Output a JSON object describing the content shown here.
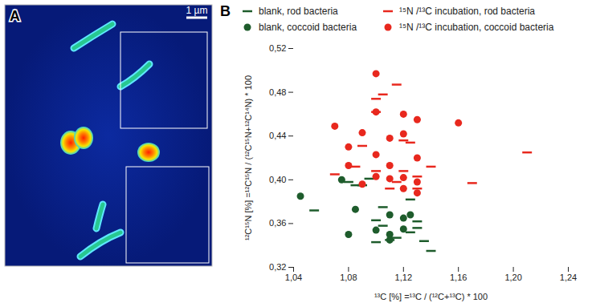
{
  "image": {
    "title": "A",
    "scale_bar_label": "1 µm"
  },
  "chart_data": {
    "type": "scatter",
    "title": "B",
    "xlabel": "¹³C [%] =¹³C / (¹²C+¹³C) * 100",
    "ylabel": "¹²C¹⁵N [%] =¹²C¹⁵N / (¹²C¹⁵N+¹²C¹⁴N) * 100",
    "xlim": [
      1.04,
      1.24
    ],
    "xticks": [
      {
        "value": 1.04,
        "label": "1,04"
      },
      {
        "value": 1.08,
        "label": "1,08"
      },
      {
        "value": 1.12,
        "label": "1,12"
      },
      {
        "value": 1.16,
        "label": "1,16"
      },
      {
        "value": 1.2,
        "label": "1,20"
      },
      {
        "value": 1.24,
        "label": "1,24"
      }
    ],
    "ylim": [
      0.32,
      0.52
    ],
    "yticks": [
      {
        "value": 0.32,
        "label": "0,32"
      },
      {
        "value": 0.36,
        "label": "0,36"
      },
      {
        "value": 0.4,
        "label": "0,40"
      },
      {
        "value": 0.44,
        "label": "0,44"
      },
      {
        "value": 0.48,
        "label": "0,48"
      },
      {
        "value": 0.52,
        "label": "0,52"
      }
    ],
    "legend": "top",
    "grid": false,
    "series": [
      {
        "name": "blank, rod bacteria",
        "color": "#1e5c2c",
        "marker": "dash",
        "x": [
          1.055,
          1.08,
          1.085,
          1.09,
          1.095,
          1.105,
          1.1,
          1.105,
          1.11,
          1.115,
          1.125,
          1.13,
          1.13,
          1.14,
          1.135,
          1.125,
          1.1
        ],
        "values": [
          0.372,
          0.398,
          0.395,
          0.395,
          0.401,
          0.375,
          0.363,
          0.358,
          0.345,
          0.347,
          0.352,
          0.356,
          0.362,
          0.335,
          0.344,
          0.382,
          0.343
        ]
      },
      {
        "name": "blank, coccoid bacteria",
        "color": "#1e5c2c",
        "marker": "circle",
        "x": [
          1.045,
          1.075,
          1.085,
          1.08,
          1.1,
          1.11,
          1.12,
          1.125,
          1.12,
          1.11,
          1.11
        ],
        "values": [
          0.385,
          0.4,
          0.373,
          0.35,
          0.354,
          0.35,
          0.355,
          0.368,
          0.365,
          0.368,
          0.345
        ]
      },
      {
        "name": "¹⁵N /¹³C incubation, rod bacteria",
        "color": "#e8281e",
        "marker": "dash",
        "x": [
          1.105,
          1.1,
          1.115,
          1.1,
          1.12,
          1.09,
          1.125,
          1.085,
          1.1,
          1.12,
          1.14,
          1.07,
          1.115,
          1.13,
          1.17,
          1.21,
          1.13,
          1.11
        ],
        "values": [
          0.478,
          0.474,
          0.487,
          0.462,
          0.436,
          0.431,
          0.434,
          0.412,
          0.408,
          0.408,
          0.412,
          0.405,
          0.398,
          0.403,
          0.397,
          0.425,
          0.392,
          0.392
        ]
      },
      {
        "name": "¹⁵N /¹³C incubation, coccoid bacteria",
        "color": "#e8281e",
        "marker": "circle",
        "x": [
          1.1,
          1.07,
          1.1,
          1.12,
          1.13,
          1.16,
          1.09,
          1.11,
          1.08,
          1.12,
          1.1,
          1.13,
          1.08,
          1.11,
          1.1,
          1.11,
          1.12,
          1.13,
          1.09,
          1.12,
          1.13
        ],
        "values": [
          0.497,
          0.449,
          0.462,
          0.46,
          0.455,
          0.452,
          0.443,
          0.438,
          0.43,
          0.442,
          0.423,
          0.42,
          0.413,
          0.413,
          0.403,
          0.401,
          0.402,
          0.398,
          0.396,
          0.392,
          0.388
        ]
      }
    ]
  }
}
